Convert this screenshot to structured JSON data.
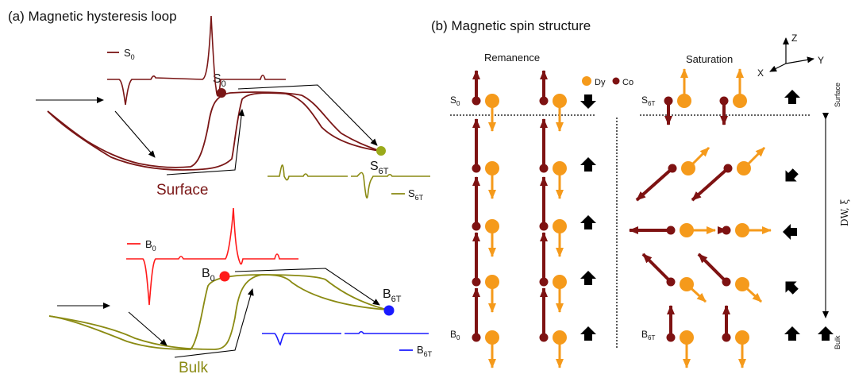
{
  "panel_a": {
    "title": "(a)  Magnetic hysteresis loop",
    "surface_label": "Surface",
    "bulk_label": "Bulk",
    "s0_point": {
      "main": "S",
      "sub": "0"
    },
    "s6t_point": {
      "main": "S",
      "sub": "6T"
    },
    "b0_point": {
      "main": "B",
      "sub": "0"
    },
    "b6t_point": {
      "main": "B",
      "sub": "6T"
    },
    "legend_s0": {
      "main": "S",
      "sub": "0"
    },
    "legend_s6t": {
      "main": "S",
      "sub": "6T"
    },
    "legend_b0": {
      "main": "B",
      "sub": "0"
    },
    "legend_b6t": {
      "main": "B",
      "sub": "6T"
    }
  },
  "panel_b": {
    "title": "(b)  Magnetic spin structure",
    "remanence": "Remanence",
    "saturation": "Saturation",
    "legend_dy": "Dy",
    "legend_co": "Co",
    "s0": {
      "main": "S",
      "sub": "0"
    },
    "b0": {
      "main": "B",
      "sub": "0"
    },
    "s6t": {
      "main": "S",
      "sub": "6T"
    },
    "b6t": {
      "main": "B",
      "sub": "6T"
    },
    "surface": "Surface",
    "bulk": "Bulk",
    "dw_label": "DW, ξ",
    "axes": {
      "x": "X",
      "y": "Y",
      "z": "Z"
    }
  },
  "colors": {
    "surface": "#7a1616",
    "bulk": "#8a8a12",
    "dy": "#f59a1b",
    "co": "#7e1212",
    "red": "#ff1a1a",
    "blue": "#1a1aff",
    "olive_dot": "#9aaa1a"
  }
}
